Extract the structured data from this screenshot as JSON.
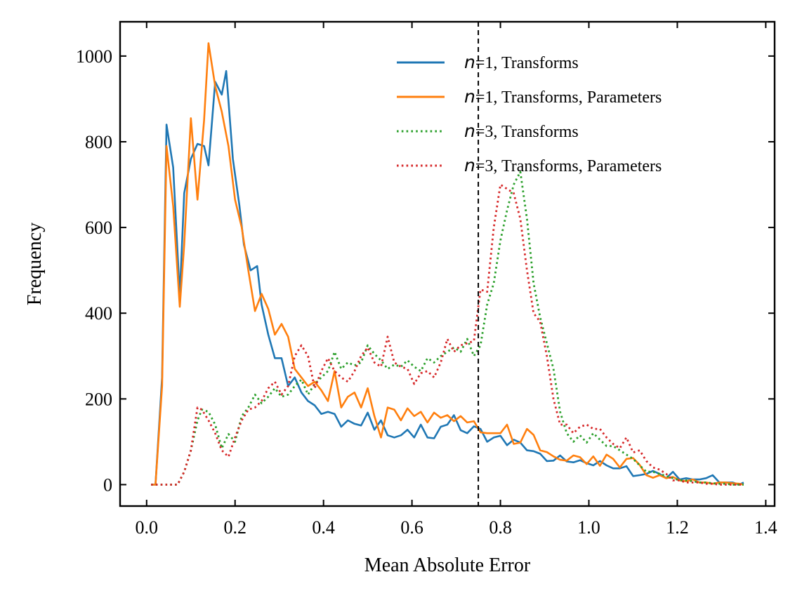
{
  "chart_data": {
    "type": "line",
    "xlabel": "Mean Absolute Error",
    "ylabel": "Frequency",
    "xlim": [
      -0.06,
      1.42
    ],
    "ylim": [
      -50,
      1080
    ],
    "xticks": [
      0.0,
      0.2,
      0.4,
      0.6,
      0.8,
      1.0,
      1.2,
      1.4
    ],
    "xtick_labels": [
      "0.0",
      "0.2",
      "0.4",
      "0.6",
      "0.8",
      "1.0",
      "1.2",
      "1.4"
    ],
    "yticks": [
      0,
      200,
      400,
      600,
      800,
      1000
    ],
    "ytick_labels": [
      "0",
      "200",
      "400",
      "600",
      "800",
      "1000"
    ],
    "vline": {
      "x": 0.75,
      "style": "dashed",
      "color": "#000000"
    },
    "legend_placement": "top-right",
    "grid": false,
    "series": [
      {
        "name": "n=1, Transforms",
        "legend_prefix": "n",
        "legend_suffix": "=1, Transforms",
        "color": "#1f77b4",
        "style": "solid",
        "x": [
          0.01,
          0.02,
          0.035,
          0.045,
          0.06,
          0.075,
          0.085,
          0.1,
          0.115,
          0.13,
          0.14,
          0.155,
          0.17,
          0.18,
          0.195,
          0.21,
          0.22,
          0.235,
          0.25,
          0.26,
          0.275,
          0.29,
          0.305,
          0.32,
          0.335,
          0.35,
          0.365,
          0.38,
          0.395,
          0.41,
          0.425,
          0.44,
          0.455,
          0.47,
          0.485,
          0.5,
          0.515,
          0.53,
          0.545,
          0.56,
          0.575,
          0.59,
          0.605,
          0.62,
          0.635,
          0.65,
          0.665,
          0.68,
          0.695,
          0.71,
          0.725,
          0.74,
          0.755,
          0.77,
          0.785,
          0.8,
          0.815,
          0.83,
          0.845,
          0.86,
          0.875,
          0.89,
          0.905,
          0.92,
          0.935,
          0.95,
          0.965,
          0.98,
          0.995,
          1.01,
          1.025,
          1.04,
          1.055,
          1.07,
          1.085,
          1.1,
          1.115,
          1.13,
          1.145,
          1.16,
          1.175,
          1.19,
          1.205,
          1.22,
          1.235,
          1.25,
          1.265,
          1.28,
          1.295,
          1.31,
          1.325,
          1.34,
          1.35
        ],
        "y": [
          0,
          0,
          250,
          840,
          740,
          440,
          680,
          760,
          795,
          790,
          745,
          940,
          910,
          965,
          760,
          650,
          560,
          500,
          510,
          420,
          350,
          295,
          295,
          230,
          250,
          215,
          195,
          185,
          165,
          170,
          165,
          135,
          150,
          142,
          138,
          168,
          128,
          150,
          115,
          110,
          115,
          128,
          110,
          140,
          110,
          108,
          135,
          140,
          162,
          127,
          120,
          136,
          130,
          100,
          110,
          114,
          92,
          105,
          98,
          80,
          78,
          72,
          55,
          56,
          68,
          54,
          52,
          57,
          50,
          45,
          55,
          45,
          38,
          38,
          43,
          20,
          22,
          25,
          32,
          25,
          15,
          30,
          12,
          15,
          12,
          12,
          15,
          22,
          5,
          5,
          5,
          0,
          5
        ]
      },
      {
        "name": "n=1, Transforms, Parameters",
        "legend_prefix": "n",
        "legend_suffix": "=1, Transforms, Parameters",
        "color": "#ff7f0e",
        "style": "solid",
        "x": [
          0.01,
          0.02,
          0.035,
          0.045,
          0.06,
          0.075,
          0.085,
          0.1,
          0.115,
          0.13,
          0.14,
          0.155,
          0.17,
          0.185,
          0.2,
          0.215,
          0.23,
          0.245,
          0.26,
          0.275,
          0.29,
          0.305,
          0.32,
          0.335,
          0.35,
          0.365,
          0.38,
          0.395,
          0.41,
          0.425,
          0.44,
          0.455,
          0.47,
          0.485,
          0.5,
          0.515,
          0.53,
          0.545,
          0.56,
          0.575,
          0.59,
          0.605,
          0.62,
          0.635,
          0.65,
          0.665,
          0.68,
          0.695,
          0.71,
          0.725,
          0.74,
          0.755,
          0.77,
          0.785,
          0.8,
          0.815,
          0.83,
          0.845,
          0.86,
          0.875,
          0.89,
          0.905,
          0.92,
          0.935,
          0.95,
          0.965,
          0.98,
          0.995,
          1.01,
          1.025,
          1.04,
          1.055,
          1.07,
          1.085,
          1.1,
          1.115,
          1.13,
          1.145,
          1.16,
          1.175,
          1.19,
          1.205,
          1.22,
          1.235,
          1.25,
          1.265,
          1.28,
          1.295,
          1.31,
          1.325,
          1.34,
          1.35
        ],
        "y": [
          0,
          0,
          230,
          790,
          650,
          415,
          560,
          855,
          665,
          850,
          1030,
          930,
          870,
          790,
          665,
          600,
          500,
          405,
          445,
          410,
          350,
          375,
          345,
          270,
          250,
          230,
          240,
          220,
          195,
          265,
          180,
          205,
          215,
          180,
          225,
          160,
          110,
          180,
          175,
          150,
          178,
          160,
          170,
          145,
          168,
          156,
          162,
          148,
          160,
          145,
          148,
          122,
          120,
          120,
          120,
          140,
          95,
          98,
          130,
          116,
          80,
          76,
          66,
          58,
          56,
          68,
          64,
          48,
          66,
          44,
          70,
          60,
          40,
          60,
          62,
          46,
          22,
          16,
          22,
          15,
          18,
          10,
          8,
          12,
          5,
          5,
          2,
          5,
          5,
          3,
          2,
          0
        ]
      },
      {
        "name": "n=3, Transforms",
        "legend_prefix": "n",
        "legend_suffix": "=3, Transforms",
        "color": "#2ca02c",
        "style": "dotted",
        "x": [
          0.01,
          0.04,
          0.07,
          0.085,
          0.1,
          0.115,
          0.125,
          0.14,
          0.155,
          0.17,
          0.185,
          0.2,
          0.215,
          0.23,
          0.245,
          0.26,
          0.275,
          0.29,
          0.305,
          0.32,
          0.335,
          0.35,
          0.365,
          0.38,
          0.395,
          0.41,
          0.425,
          0.44,
          0.455,
          0.47,
          0.485,
          0.5,
          0.515,
          0.53,
          0.545,
          0.56,
          0.575,
          0.59,
          0.605,
          0.62,
          0.635,
          0.65,
          0.665,
          0.68,
          0.695,
          0.71,
          0.725,
          0.74,
          0.755,
          0.77,
          0.785,
          0.8,
          0.815,
          0.83,
          0.845,
          0.86,
          0.875,
          0.89,
          0.905,
          0.92,
          0.935,
          0.95,
          0.965,
          0.98,
          0.995,
          1.01,
          1.025,
          1.04,
          1.055,
          1.07,
          1.085,
          1.1,
          1.115,
          1.13,
          1.145,
          1.16,
          1.175,
          1.19,
          1.205,
          1.22,
          1.235,
          1.25,
          1.265,
          1.28,
          1.295,
          1.31,
          1.325,
          1.34,
          1.35
        ],
        "y": [
          0,
          0,
          0,
          30,
          80,
          150,
          175,
          170,
          140,
          85,
          118,
          100,
          160,
          180,
          210,
          190,
          205,
          225,
          205,
          210,
          230,
          245,
          210,
          235,
          250,
          265,
          310,
          270,
          285,
          278,
          285,
          325,
          305,
          290,
          270,
          280,
          275,
          290,
          275,
          265,
          295,
          285,
          300,
          310,
          320,
          310,
          340,
          300,
          325,
          420,
          470,
          570,
          640,
          700,
          730,
          620,
          470,
          390,
          330,
          270,
          170,
          120,
          100,
          115,
          98,
          120,
          105,
          90,
          90,
          80,
          70,
          60,
          45,
          30,
          30,
          25,
          20,
          15,
          10,
          10,
          8,
          5,
          5,
          3,
          2,
          2,
          0,
          0,
          0
        ]
      },
      {
        "name": "n=3, Transforms, Parameters",
        "legend_prefix": "n",
        "legend_suffix": "=3, Transforms, Parameters",
        "color": "#d62728",
        "style": "dotted",
        "x": [
          0.01,
          0.04,
          0.07,
          0.085,
          0.1,
          0.115,
          0.125,
          0.14,
          0.155,
          0.17,
          0.185,
          0.2,
          0.215,
          0.23,
          0.245,
          0.26,
          0.275,
          0.29,
          0.305,
          0.32,
          0.335,
          0.35,
          0.365,
          0.38,
          0.395,
          0.41,
          0.425,
          0.44,
          0.455,
          0.47,
          0.485,
          0.5,
          0.515,
          0.53,
          0.545,
          0.56,
          0.575,
          0.59,
          0.605,
          0.62,
          0.635,
          0.65,
          0.665,
          0.68,
          0.695,
          0.71,
          0.725,
          0.74,
          0.755,
          0.77,
          0.785,
          0.8,
          0.815,
          0.83,
          0.845,
          0.86,
          0.875,
          0.89,
          0.905,
          0.92,
          0.935,
          0.95,
          0.965,
          0.98,
          0.995,
          1.01,
          1.025,
          1.04,
          1.055,
          1.07,
          1.085,
          1.1,
          1.115,
          1.13,
          1.145,
          1.16,
          1.175,
          1.19,
          1.205,
          1.22,
          1.235,
          1.25,
          1.265,
          1.28,
          1.295,
          1.31,
          1.325,
          1.34,
          1.35
        ],
        "y": [
          0,
          0,
          0,
          30,
          80,
          180,
          175,
          150,
          120,
          80,
          65,
          110,
          150,
          175,
          180,
          195,
          225,
          240,
          210,
          230,
          300,
          325,
          300,
          225,
          265,
          295,
          265,
          250,
          240,
          265,
          300,
          320,
          285,
          275,
          345,
          285,
          275,
          270,
          235,
          260,
          265,
          250,
          285,
          340,
          310,
          325,
          330,
          335,
          455,
          450,
          600,
          700,
          690,
          680,
          620,
          500,
          400,
          380,
          300,
          200,
          140,
          140,
          120,
          135,
          140,
          130,
          130,
          110,
          95,
          85,
          110,
          75,
          80,
          55,
          40,
          35,
          25,
          10,
          10,
          5,
          5,
          5,
          2,
          2,
          0,
          0,
          0,
          0,
          0
        ]
      }
    ]
  }
}
